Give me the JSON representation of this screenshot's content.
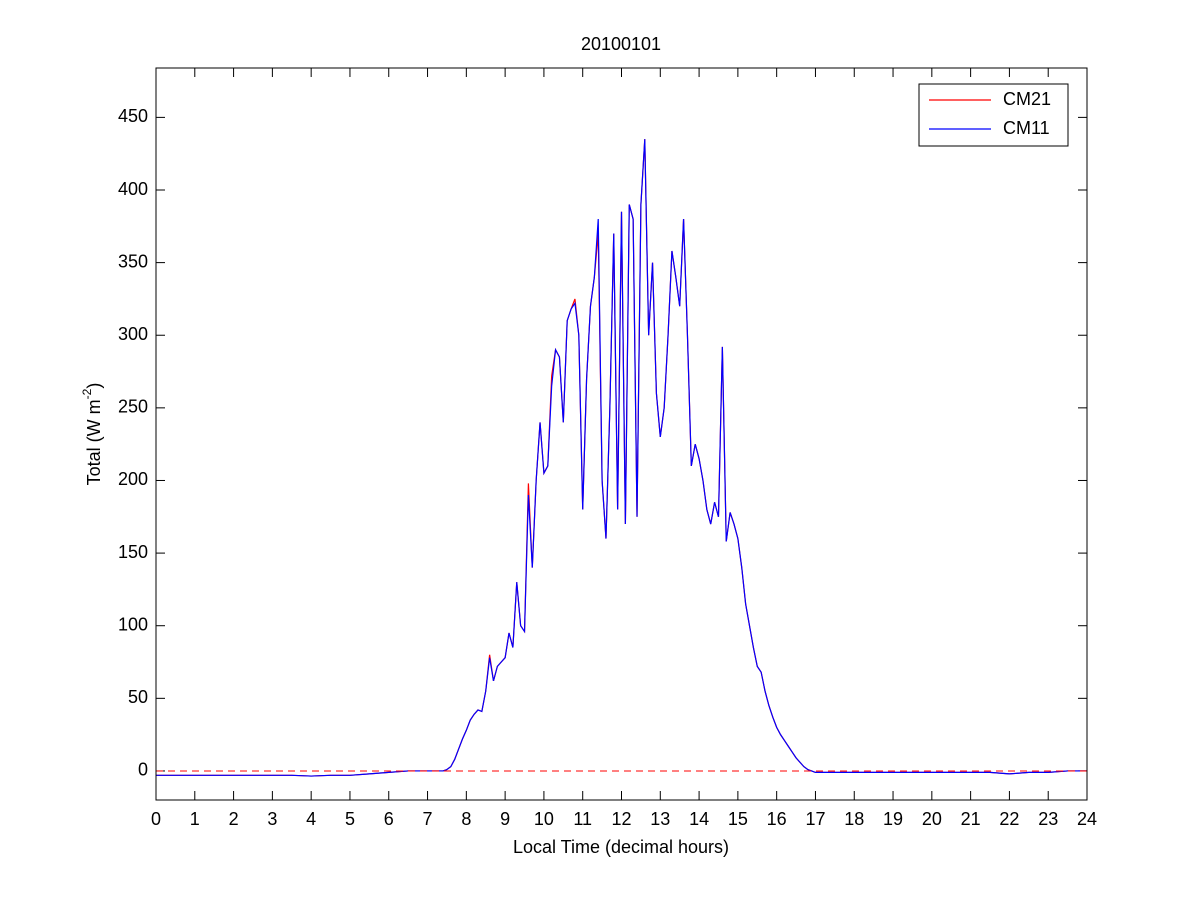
{
  "chart_data": {
    "type": "line",
    "title": "20100101",
    "xlabel": "Local Time (decimal hours)",
    "ylabel": [
      "Total (W m",
      "-2",
      ")"
    ],
    "xlim": [
      0,
      24
    ],
    "ylim": [
      -20,
      484
    ],
    "xticks": [
      0,
      1,
      2,
      3,
      4,
      5,
      6,
      7,
      8,
      9,
      10,
      11,
      12,
      13,
      14,
      15,
      16,
      17,
      18,
      19,
      20,
      21,
      22,
      23,
      24
    ],
    "yticks": [
      0,
      50,
      100,
      150,
      200,
      250,
      300,
      350,
      400,
      450
    ],
    "legend": "upper right",
    "hline": {
      "value": 0,
      "color": "#ff0000"
    },
    "x": [
      0,
      0.5,
      1,
      1.5,
      2,
      2.5,
      3,
      3.5,
      4,
      4.5,
      5,
      5.5,
      6,
      6.5,
      7,
      7.2,
      7.3,
      7.4,
      7.5,
      7.6,
      7.7,
      7.8,
      7.9,
      8,
      8.1,
      8.2,
      8.3,
      8.4,
      8.5,
      8.6,
      8.7,
      8.8,
      8.9,
      9,
      9.1,
      9.2,
      9.3,
      9.4,
      9.5,
      9.6,
      9.7,
      9.8,
      9.9,
      10,
      10.1,
      10.2,
      10.3,
      10.4,
      10.5,
      10.6,
      10.7,
      10.8,
      10.9,
      11,
      11.1,
      11.2,
      11.3,
      11.4,
      11.5,
      11.6,
      11.7,
      11.8,
      11.9,
      12,
      12.1,
      12.2,
      12.3,
      12.4,
      12.5,
      12.6,
      12.7,
      12.8,
      12.9,
      13,
      13.1,
      13.2,
      13.3,
      13.4,
      13.5,
      13.6,
      13.7,
      13.8,
      13.9,
      14,
      14.1,
      14.2,
      14.3,
      14.4,
      14.5,
      14.6,
      14.7,
      14.8,
      14.9,
      15,
      15.1,
      15.2,
      15.3,
      15.4,
      15.5,
      15.6,
      15.7,
      15.8,
      15.9,
      16,
      16.1,
      16.2,
      16.3,
      16.4,
      16.5,
      16.6,
      16.7,
      16.8,
      16.9,
      17,
      17.1,
      17.2,
      17.5,
      18,
      18.5,
      19,
      19.5,
      20,
      20.5,
      21,
      21.5,
      22,
      22.5,
      23,
      23.5,
      24
    ],
    "series": [
      {
        "name": "CM21",
        "color": "#ff0000",
        "values": [
          -3,
          -3,
          -3,
          -3,
          -3,
          -3,
          -3,
          -3,
          -3.5,
          -3,
          -3,
          -2,
          -1,
          0,
          0,
          0,
          0,
          0,
          1,
          3,
          8,
          15,
          22,
          28,
          35,
          39,
          42,
          41,
          55,
          80,
          62,
          72,
          75,
          78,
          95,
          85,
          130,
          100,
          96,
          198,
          140,
          200,
          240,
          205,
          210,
          272,
          290,
          285,
          240,
          310,
          318,
          325,
          300,
          180,
          270,
          320,
          340,
          370,
          200,
          160,
          250,
          370,
          180,
          385,
          170,
          390,
          380,
          175,
          390,
          435,
          300,
          350,
          260,
          230,
          250,
          300,
          358,
          340,
          320,
          380,
          300,
          210,
          225,
          215,
          200,
          180,
          170,
          185,
          175,
          292,
          158,
          178,
          170,
          160,
          140,
          115,
          100,
          85,
          72,
          68,
          55,
          45,
          37,
          30,
          25,
          21,
          17,
          13,
          9,
          6,
          3,
          1,
          0,
          -1,
          -1,
          -1,
          -1,
          -1,
          -1,
          -1,
          -1,
          -1,
          -1,
          -1,
          -1,
          -2,
          -1,
          -1,
          0,
          0
        ]
      },
      {
        "name": "CM11",
        "color": "#0000ff",
        "values": [
          -3,
          -3,
          -3,
          -3,
          -3,
          -3,
          -3,
          -3,
          -3.5,
          -3,
          -3,
          -2,
          -1,
          0,
          0,
          0,
          0,
          0,
          1,
          3,
          8,
          15,
          22,
          28,
          35,
          39,
          42,
          41,
          55,
          78,
          62,
          72,
          75,
          78,
          95,
          85,
          130,
          100,
          96,
          190,
          140,
          200,
          240,
          205,
          210,
          265,
          290,
          285,
          240,
          310,
          318,
          322,
          300,
          180,
          270,
          320,
          340,
          380,
          200,
          160,
          250,
          370,
          180,
          385,
          170,
          390,
          380,
          175,
          390,
          435,
          300,
          350,
          260,
          230,
          250,
          300,
          358,
          340,
          320,
          380,
          300,
          210,
          225,
          215,
          200,
          180,
          170,
          185,
          175,
          292,
          158,
          178,
          170,
          160,
          140,
          115,
          100,
          85,
          72,
          68,
          55,
          45,
          37,
          30,
          25,
          21,
          17,
          13,
          9,
          6,
          3,
          1,
          0,
          -1,
          -1,
          -1,
          -1,
          -1,
          -1,
          -1,
          -1,
          -1,
          -1,
          -1,
          -1,
          -2,
          -1,
          -1,
          0,
          0
        ]
      }
    ]
  }
}
